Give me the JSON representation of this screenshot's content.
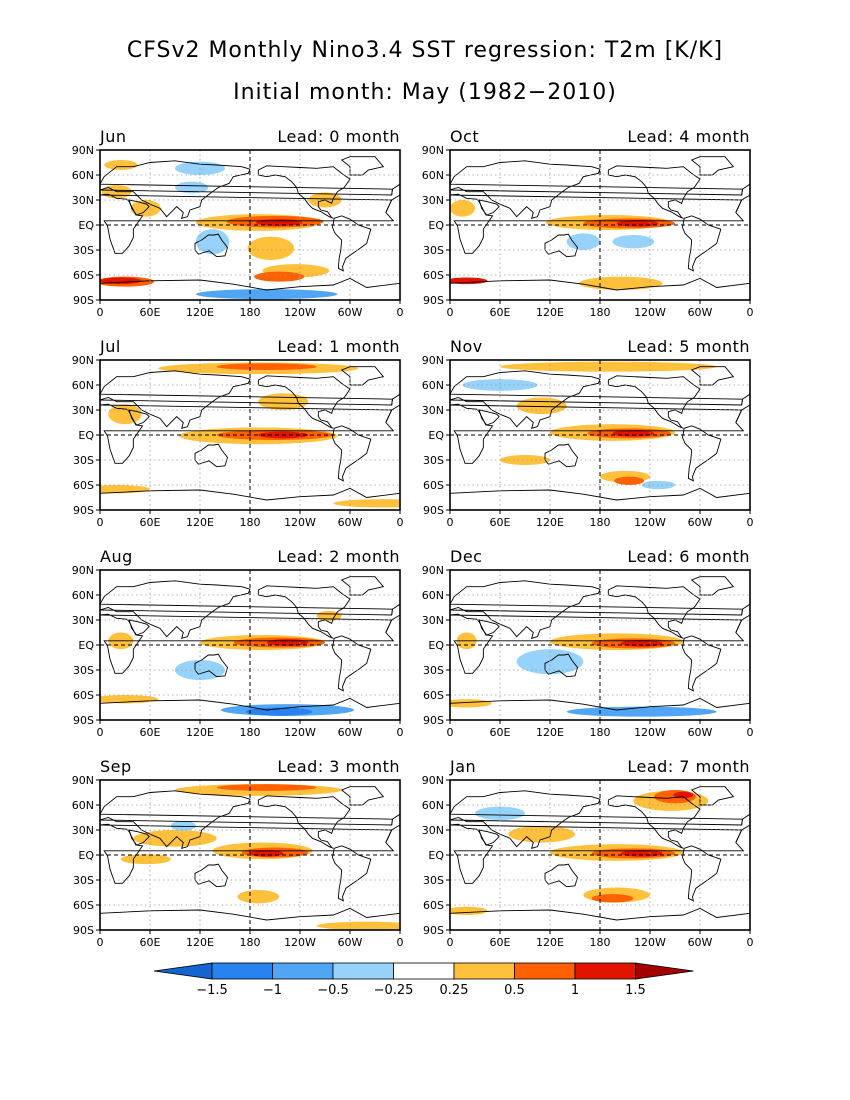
{
  "title": "CFSv2 Monthly Nino3.4 SST regression: T2m [K/K]",
  "subtitle": "Initial month: May (1982−2010)",
  "lat_labels": [
    "90N",
    "60N",
    "30N",
    "EQ",
    "30S",
    "60S",
    "90S"
  ],
  "lon_labels": [
    "0",
    "60E",
    "120E",
    "180",
    "120W",
    "60W",
    "0"
  ],
  "panels": [
    {
      "month": "Jun",
      "lead": "Lead: 0 month",
      "lead_months": 0
    },
    {
      "month": "Oct",
      "lead": "Lead: 4 month",
      "lead_months": 4
    },
    {
      "month": "Jul",
      "lead": "Lead: 1 month",
      "lead_months": 1
    },
    {
      "month": "Nov",
      "lead": "Lead: 5 month",
      "lead_months": 5
    },
    {
      "month": "Aug",
      "lead": "Lead: 2 month",
      "lead_months": 2
    },
    {
      "month": "Dec",
      "lead": "Lead: 6 month",
      "lead_months": 6
    },
    {
      "month": "Sep",
      "lead": "Lead: 3 month",
      "lead_months": 3
    },
    {
      "month": "Jan",
      "lead": "Lead: 7 month",
      "lead_months": 7
    }
  ],
  "colorbar": {
    "labels": [
      "−1.5",
      "−1",
      "−0.5",
      "−0.25",
      "0.25",
      "0.5",
      "1",
      "1.5"
    ],
    "levels": [
      -1.5,
      -1,
      -0.5,
      -0.25,
      0.25,
      0.5,
      1,
      1.5
    ],
    "colors": [
      "#1464d2",
      "#2882f0",
      "#50a5f5",
      "#96d2fa",
      "#ffffff",
      "#ffc03c",
      "#ff6000",
      "#e11400",
      "#a50000"
    ]
  },
  "colors": {
    "strong_warm": "#e11400",
    "warm": "#ff6000",
    "weak_warm": "#ffc03c",
    "weak_cool": "#96d2fa",
    "cool": "#50a5f5",
    "strong_cool": "#2882f0"
  }
}
